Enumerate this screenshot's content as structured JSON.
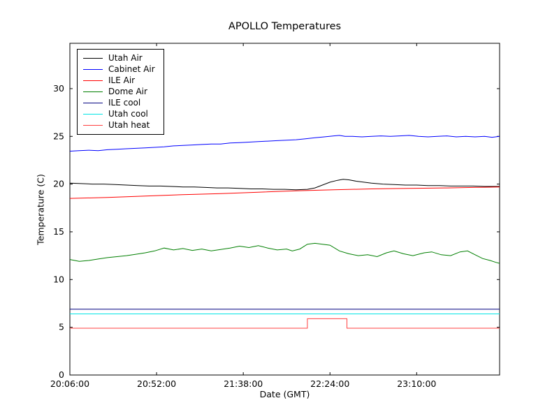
{
  "chart_data": {
    "type": "line",
    "title": "APOLLO Temperatures",
    "xlabel": "Date (GMT)",
    "ylabel": "Temperature (C)",
    "grid": false,
    "legend_position": "upper left",
    "xlim": [
      0,
      228
    ],
    "ylim": [
      0,
      34.75
    ],
    "xticks": [
      {
        "pos": 0,
        "label": "20:06:00"
      },
      {
        "pos": 46,
        "label": "20:52:00"
      },
      {
        "pos": 92,
        "label": "21:38:00"
      },
      {
        "pos": 138,
        "label": "22:24:00"
      },
      {
        "pos": 184,
        "label": "23:10:00"
      }
    ],
    "yticks": [
      {
        "pos": 0,
        "label": "0"
      },
      {
        "pos": 5,
        "label": "5"
      },
      {
        "pos": 10,
        "label": "10"
      },
      {
        "pos": 15,
        "label": "15"
      },
      {
        "pos": 20,
        "label": "20"
      },
      {
        "pos": 25,
        "label": "25"
      },
      {
        "pos": 30,
        "label": "30"
      }
    ],
    "series": [
      {
        "name": "Utah Air",
        "color": "#000000",
        "x": [
          0,
          6,
          12,
          18,
          24,
          30,
          36,
          42,
          48,
          54,
          60,
          66,
          72,
          78,
          84,
          90,
          96,
          102,
          108,
          114,
          120,
          126,
          130,
          134,
          138,
          142,
          145,
          148,
          152,
          156,
          160,
          166,
          172,
          178,
          184,
          190,
          196,
          202,
          208,
          214,
          220,
          228
        ],
        "y": [
          20.1,
          20.05,
          20.0,
          20.0,
          19.95,
          19.9,
          19.85,
          19.8,
          19.8,
          19.75,
          19.7,
          19.7,
          19.65,
          19.6,
          19.6,
          19.55,
          19.5,
          19.5,
          19.45,
          19.45,
          19.4,
          19.45,
          19.6,
          19.9,
          20.2,
          20.4,
          20.5,
          20.45,
          20.3,
          20.2,
          20.1,
          20.0,
          19.95,
          19.9,
          19.9,
          19.85,
          19.85,
          19.8,
          19.8,
          19.8,
          19.75,
          19.75
        ]
      },
      {
        "name": "Cabinet Air",
        "color": "#0000ff",
        "x": [
          0,
          5,
          10,
          15,
          20,
          25,
          30,
          35,
          40,
          45,
          50,
          55,
          60,
          65,
          70,
          75,
          80,
          85,
          90,
          95,
          100,
          105,
          110,
          115,
          120,
          125,
          130,
          135,
          140,
          143,
          146,
          150,
          155,
          160,
          165,
          170,
          175,
          180,
          185,
          190,
          195,
          200,
          205,
          210,
          215,
          220,
          224,
          228
        ],
        "y": [
          23.45,
          23.5,
          23.55,
          23.5,
          23.6,
          23.65,
          23.7,
          23.75,
          23.8,
          23.85,
          23.9,
          24.0,
          24.05,
          24.1,
          24.15,
          24.2,
          24.2,
          24.3,
          24.35,
          24.4,
          24.45,
          24.5,
          24.55,
          24.6,
          24.65,
          24.75,
          24.85,
          24.95,
          25.05,
          25.1,
          25.0,
          25.0,
          24.95,
          25.0,
          25.05,
          25.0,
          25.05,
          25.1,
          25.0,
          24.95,
          25.0,
          25.05,
          24.95,
          25.0,
          24.95,
          25.0,
          24.9,
          25.0
        ]
      },
      {
        "name": "ILE Air",
        "color": "#ff0000",
        "x": [
          0,
          20,
          40,
          60,
          80,
          100,
          120,
          140,
          160,
          180,
          200,
          214,
          228
        ],
        "y": [
          18.5,
          18.6,
          18.75,
          18.9,
          19.0,
          19.15,
          19.3,
          19.4,
          19.5,
          19.55,
          19.6,
          19.65,
          19.7
        ]
      },
      {
        "name": "Dome Air",
        "color": "#007f00",
        "x": [
          0,
          5,
          10,
          15,
          20,
          25,
          30,
          35,
          40,
          45,
          50,
          55,
          60,
          65,
          70,
          75,
          80,
          85,
          90,
          95,
          100,
          105,
          110,
          115,
          118,
          122,
          126,
          130,
          134,
          138,
          143,
          148,
          153,
          158,
          163,
          168,
          172,
          177,
          182,
          188,
          192,
          197,
          202,
          207,
          211,
          215,
          219,
          223,
          226,
          228
        ],
        "y": [
          12.1,
          11.9,
          12.0,
          12.15,
          12.3,
          12.4,
          12.5,
          12.65,
          12.8,
          13.0,
          13.3,
          13.1,
          13.25,
          13.05,
          13.2,
          13.0,
          13.15,
          13.3,
          13.5,
          13.35,
          13.55,
          13.3,
          13.1,
          13.2,
          13.0,
          13.2,
          13.7,
          13.8,
          13.7,
          13.6,
          13.0,
          12.7,
          12.5,
          12.6,
          12.4,
          12.8,
          13.0,
          12.7,
          12.5,
          12.8,
          12.9,
          12.6,
          12.5,
          12.9,
          13.0,
          12.6,
          12.2,
          12.0,
          11.8,
          11.7
        ]
      },
      {
        "name": "ILE cool",
        "color": "#000080",
        "x": [
          0,
          228
        ],
        "y": [
          6.9,
          6.9
        ]
      },
      {
        "name": "Utah cool",
        "color": "#00e5e5",
        "x": [
          0,
          228
        ],
        "y": [
          6.4,
          6.4
        ]
      },
      {
        "name": "Utah heat",
        "color": "#ff4040",
        "x": [
          0,
          126,
          126,
          147,
          147,
          228
        ],
        "y": [
          4.9,
          4.9,
          5.9,
          5.9,
          4.9,
          4.9
        ]
      }
    ]
  }
}
